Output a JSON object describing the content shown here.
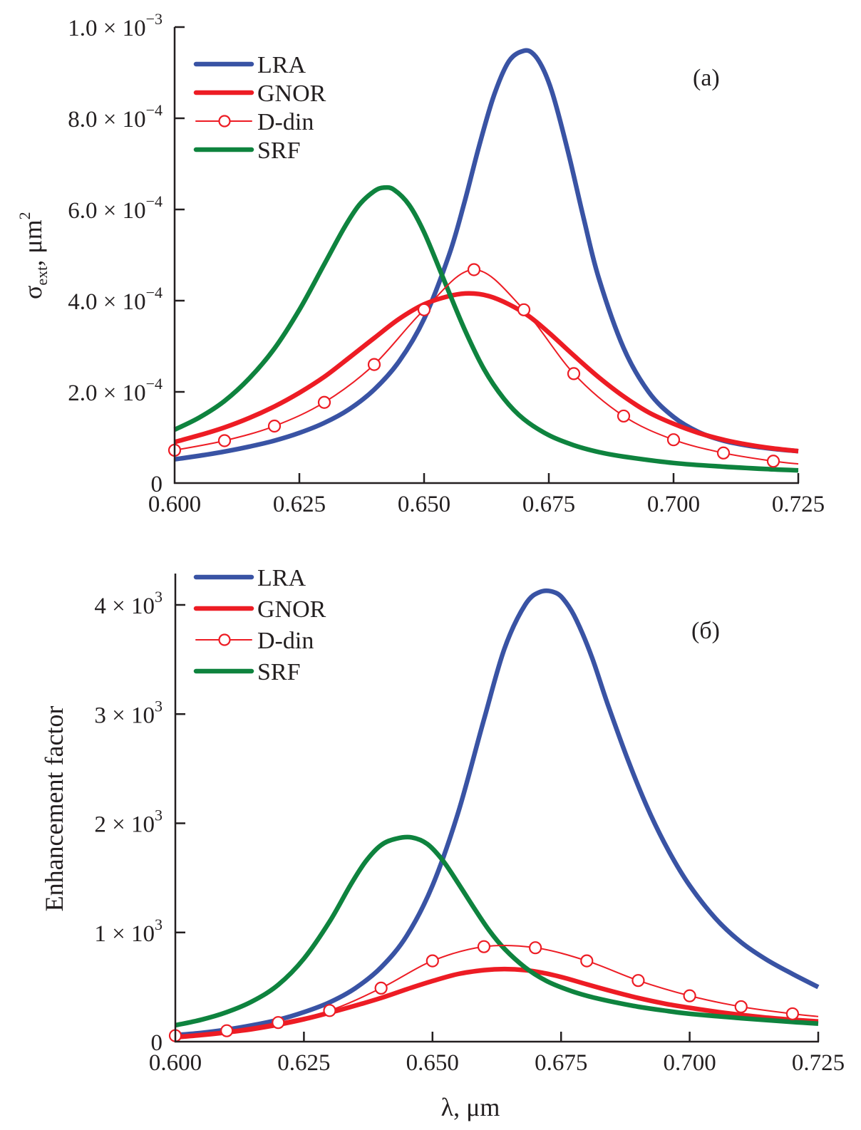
{
  "chart_data": [
    {
      "type": "line",
      "panel_label": "(a)",
      "title": "",
      "xlabel": "",
      "ylabel": {
        "base": "σ",
        "sub": "ext",
        "rest": ", μm",
        "sup": "2"
      },
      "xlim": [
        0.6,
        0.725
      ],
      "ylim": [
        0,
        0.001
      ],
      "grid": false,
      "legend_placement": "top-left",
      "x_ticks": [
        0.6,
        0.625,
        0.65,
        0.675,
        0.7,
        0.725
      ],
      "x_tick_labels": [
        "0.600",
        "0.625",
        "0.650",
        "0.675",
        "0.700",
        "0.725"
      ],
      "y_ticks": [
        0,
        0.0002,
        0.0004,
        0.0006,
        0.0008,
        0.001
      ],
      "y_tick_labels": [
        {
          "mant": "0",
          "exp": ""
        },
        {
          "mant": "2.0 × 10",
          "exp": "−4"
        },
        {
          "mant": "4.0 × 10",
          "exp": "−4"
        },
        {
          "mant": "6.0 × 10",
          "exp": "−4"
        },
        {
          "mant": "8.0 × 10",
          "exp": "−4"
        },
        {
          "mant": "1.0 × 10",
          "exp": "−3"
        }
      ],
      "series": [
        {
          "name": "LRA",
          "color": "#3953a4",
          "style": "thick",
          "x": [
            0.6,
            0.605,
            0.61,
            0.615,
            0.62,
            0.625,
            0.63,
            0.635,
            0.64,
            0.645,
            0.65,
            0.655,
            0.658,
            0.661,
            0.664,
            0.667,
            0.67,
            0.672,
            0.674,
            0.676,
            0.679,
            0.682,
            0.685,
            0.69,
            0.695,
            0.7,
            0.705,
            0.71,
            0.715,
            0.72,
            0.725
          ],
          "y": [
            5.2e-05,
            6e-05,
            6.9e-05,
            8e-05,
            9.3e-05,
            0.00011,
            0.000132,
            0.000162,
            0.000205,
            0.000267,
            0.00036,
            0.0005,
            0.000612,
            0.000738,
            0.00085,
            0.000925,
            0.000948,
            0.00094,
            0.000905,
            0.000845,
            0.00072,
            0.00058,
            0.00045,
            0.000296,
            0.0002,
            0.000145,
            0.000112,
            9.3e-05,
            8.2e-05,
            7.5e-05,
            7e-05
          ]
        },
        {
          "name": "GNOR",
          "color": "#ed1c24",
          "style": "thick",
          "x": [
            0.6,
            0.605,
            0.61,
            0.615,
            0.62,
            0.625,
            0.63,
            0.635,
            0.64,
            0.645,
            0.65,
            0.655,
            0.659,
            0.663,
            0.667,
            0.671,
            0.675,
            0.68,
            0.685,
            0.69,
            0.695,
            0.7,
            0.705,
            0.71,
            0.715,
            0.72,
            0.725
          ],
          "y": [
            9e-05,
            0.000105,
            0.000122,
            0.000143,
            0.000168,
            0.000198,
            0.000233,
            0.000275,
            0.000318,
            0.00036,
            0.000392,
            0.00041,
            0.000416,
            0.00041,
            0.000392,
            0.000366,
            0.00033,
            0.00028,
            0.000232,
            0.00019,
            0.000155,
            0.00013,
            0.00011,
            9.5e-05,
            8.4e-05,
            7.6e-05,
            7e-05
          ]
        },
        {
          "name": "D-din",
          "color": "#ed1c24",
          "style": "thin-markers",
          "x": [
            0.6,
            0.61,
            0.62,
            0.63,
            0.64,
            0.65,
            0.66,
            0.67,
            0.68,
            0.69,
            0.7,
            0.71,
            0.72,
            0.725
          ],
          "y": [
            7.2e-05,
            9.3e-05,
            0.000125,
            0.000177,
            0.00026,
            0.00038,
            0.000468,
            0.00038,
            0.00024,
            0.000147,
            9.5e-05,
            6.6e-05,
            4.8e-05,
            4.2e-05
          ],
          "markers_x": [
            0.6,
            0.61,
            0.62,
            0.63,
            0.64,
            0.65,
            0.66,
            0.67,
            0.68,
            0.69,
            0.7,
            0.71,
            0.72
          ]
        },
        {
          "name": "SRF",
          "color": "#0e833e",
          "style": "thick",
          "x": [
            0.6,
            0.605,
            0.61,
            0.615,
            0.62,
            0.625,
            0.63,
            0.634,
            0.637,
            0.64,
            0.642,
            0.644,
            0.647,
            0.65,
            0.654,
            0.658,
            0.662,
            0.666,
            0.67,
            0.675,
            0.68,
            0.685,
            0.69,
            0.7,
            0.71,
            0.72,
            0.725
          ],
          "y": [
            0.000117,
            0.000144,
            0.00018,
            0.00023,
            0.000295,
            0.00038,
            0.00048,
            0.00056,
            0.00061,
            0.00064,
            0.000648,
            0.000643,
            0.00061,
            0.00055,
            0.000445,
            0.00034,
            0.00025,
            0.000185,
            0.00014,
            0.000105,
            8.3e-05,
            6.8e-05,
            5.8e-05,
            4.4e-05,
            3.6e-05,
            3e-05,
            2.8e-05
          ]
        }
      ]
    },
    {
      "type": "line",
      "panel_label": "(б)",
      "title": "",
      "xlabel": "λ, μm",
      "ylabel": {
        "base": "Enhancement factor",
        "sub": "",
        "rest": "",
        "sup": ""
      },
      "xlim": [
        0.6,
        0.725
      ],
      "ylim": [
        0,
        4300
      ],
      "grid": false,
      "legend_placement": "top-left",
      "x_ticks": [
        0.6,
        0.625,
        0.65,
        0.675,
        0.7,
        0.725
      ],
      "x_tick_labels": [
        "0.600",
        "0.625",
        "0.650",
        "0.675",
        "0.700",
        "0.725"
      ],
      "y_ticks": [
        0,
        1000,
        2000,
        3000,
        4000
      ],
      "y_tick_labels": [
        {
          "mant": "0",
          "exp": ""
        },
        {
          "mant": "1 × 10",
          "exp": "3"
        },
        {
          "mant": "2 × 10",
          "exp": "3"
        },
        {
          "mant": "3 × 10",
          "exp": "3"
        },
        {
          "mant": "4 × 10",
          "exp": "3"
        }
      ],
      "series": [
        {
          "name": "LRA",
          "color": "#3953a4",
          "style": "thick",
          "x": [
            0.6,
            0.605,
            0.61,
            0.615,
            0.62,
            0.625,
            0.63,
            0.635,
            0.64,
            0.645,
            0.65,
            0.655,
            0.66,
            0.664,
            0.668,
            0.671,
            0.674,
            0.676,
            0.678,
            0.681,
            0.684,
            0.688,
            0.692,
            0.696,
            0.7,
            0.705,
            0.71,
            0.715,
            0.72,
            0.725
          ],
          "y": [
            60,
            80,
            110,
            150,
            200,
            270,
            360,
            490,
            680,
            970,
            1430,
            2100,
            2950,
            3600,
            4000,
            4120,
            4110,
            4020,
            3860,
            3520,
            3100,
            2580,
            2120,
            1740,
            1430,
            1130,
            910,
            750,
            620,
            500
          ]
        },
        {
          "name": "GNOR",
          "color": "#ed1c24",
          "style": "thick",
          "x": [
            0.6,
            0.605,
            0.61,
            0.615,
            0.62,
            0.625,
            0.63,
            0.635,
            0.64,
            0.645,
            0.65,
            0.655,
            0.66,
            0.664,
            0.668,
            0.672,
            0.676,
            0.68,
            0.685,
            0.69,
            0.695,
            0.7,
            0.705,
            0.71,
            0.715,
            0.72,
            0.725
          ],
          "y": [
            40,
            60,
            85,
            115,
            155,
            205,
            265,
            330,
            400,
            480,
            555,
            620,
            655,
            665,
            655,
            625,
            580,
            525,
            460,
            400,
            350,
            310,
            275,
            245,
            220,
            200,
            185
          ]
        },
        {
          "name": "D-din",
          "color": "#ed1c24",
          "style": "thin-markers",
          "x": [
            0.6,
            0.61,
            0.62,
            0.63,
            0.64,
            0.65,
            0.66,
            0.67,
            0.68,
            0.69,
            0.7,
            0.71,
            0.72,
            0.725
          ],
          "y": [
            55,
            100,
            175,
            285,
            490,
            740,
            870,
            860,
            740,
            560,
            420,
            320,
            255,
            230
          ],
          "markers_x": [
            0.6,
            0.61,
            0.62,
            0.63,
            0.64,
            0.65,
            0.66,
            0.67,
            0.68,
            0.69,
            0.7,
            0.71,
            0.72
          ]
        },
        {
          "name": "SRF",
          "color": "#0e833e",
          "style": "thick",
          "x": [
            0.6,
            0.605,
            0.61,
            0.615,
            0.62,
            0.625,
            0.63,
            0.634,
            0.637,
            0.64,
            0.643,
            0.646,
            0.649,
            0.652,
            0.655,
            0.658,
            0.661,
            0.664,
            0.668,
            0.672,
            0.676,
            0.68,
            0.685,
            0.69,
            0.695,
            0.7,
            0.71,
            0.72,
            0.725
          ],
          "y": [
            150,
            200,
            270,
            370,
            520,
            760,
            1100,
            1430,
            1650,
            1800,
            1860,
            1870,
            1810,
            1660,
            1450,
            1230,
            1020,
            850,
            680,
            560,
            480,
            420,
            365,
            320,
            285,
            255,
            215,
            180,
            165
          ]
        }
      ]
    }
  ]
}
